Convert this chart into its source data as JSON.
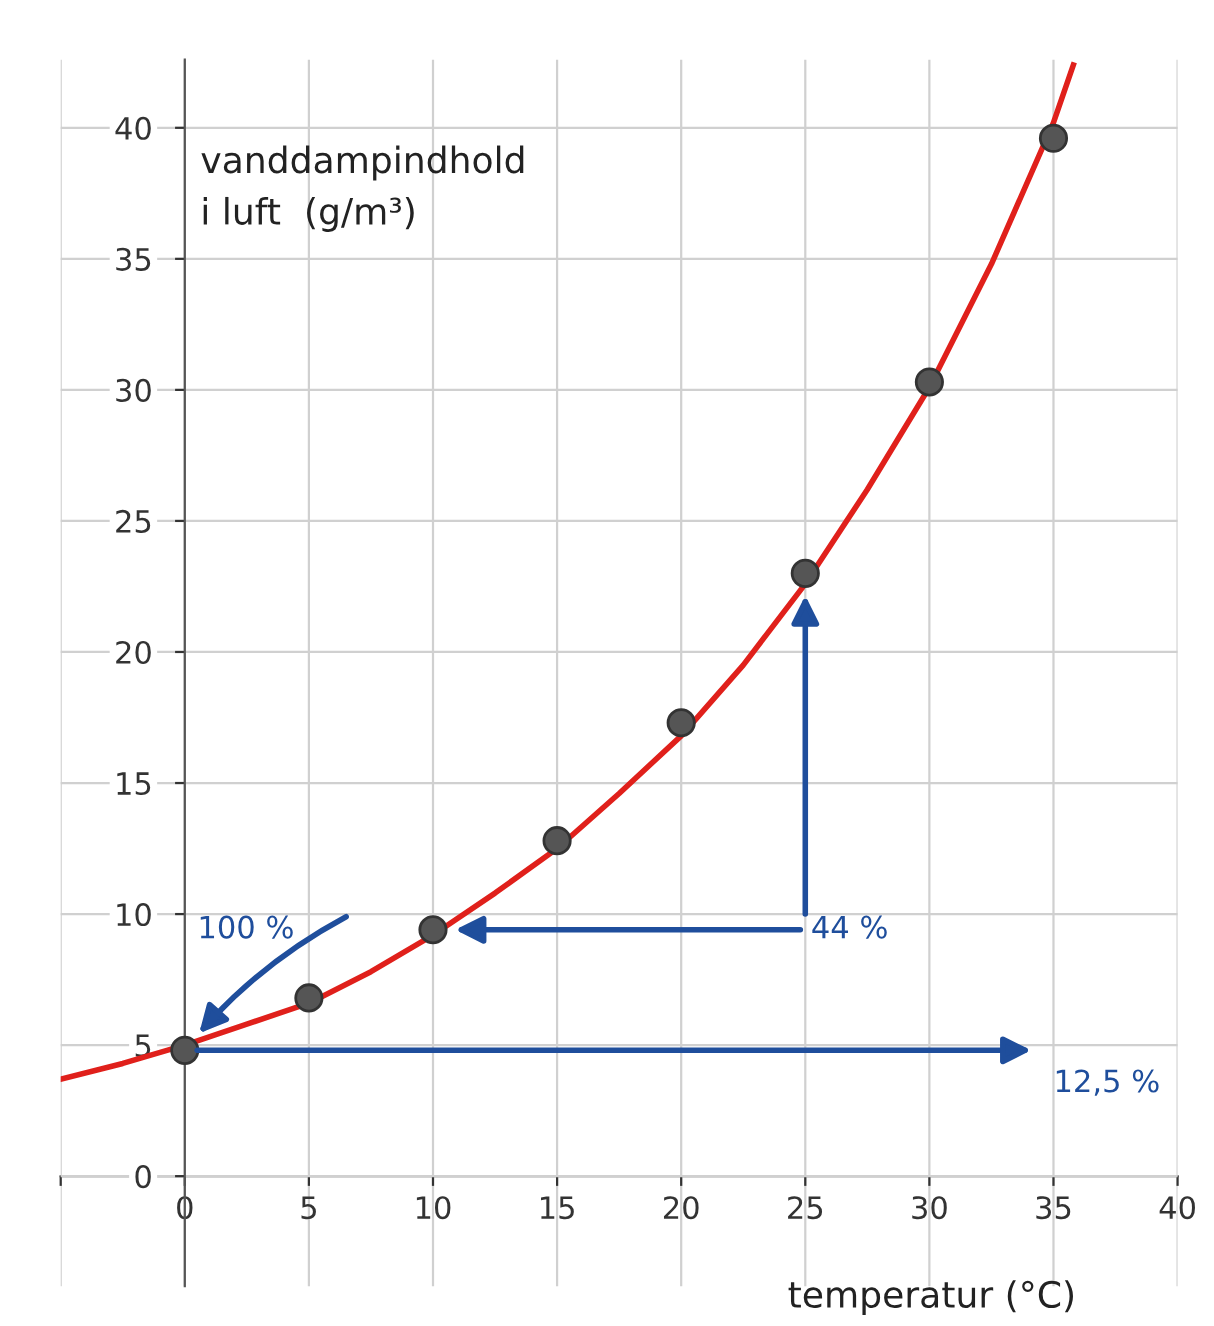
{
  "chart_data": {
    "type": "scatter",
    "xlabel": "temperatur (°C)",
    "ylabel": "vanddampindhold\ni luft  (g/m³)",
    "x": [
      0,
      5,
      10,
      15,
      20,
      25,
      30,
      35
    ],
    "series": [
      {
        "color": "#555555",
        "marker": "circle",
        "values": [
          4.8,
          6.8,
          9.4,
          12.8,
          17.3,
          23.0,
          30.3,
          39.6
        ]
      },
      {
        "type": "line",
        "marker": "none",
        "color": "#e0201b",
        "x": [
          -5,
          -2.5,
          0,
          2.5,
          5,
          7.5,
          10,
          12.5,
          15,
          17.5,
          20,
          22.5,
          25,
          27.5,
          30,
          32.5,
          35,
          35.8
        ],
        "values": [
          3.7,
          4.3,
          5.0,
          5.8,
          6.6,
          7.8,
          9.2,
          10.8,
          12.5,
          14.6,
          16.8,
          19.5,
          22.6,
          26.2,
          30.1,
          34.8,
          40.2,
          42.4
        ]
      }
    ],
    "annotations": [
      "100 %",
      "44 %",
      "12,5 %"
    ],
    "xlim": [
      -5,
      40
    ],
    "ylim": [
      -4.2,
      42.6
    ],
    "xticks": [
      {
        "value": -5,
        "label": null
      },
      0,
      5,
      10,
      15,
      20,
      25,
      30,
      35,
      40
    ],
    "yticks": [
      0,
      5,
      10,
      15,
      20,
      25,
      30,
      35,
      40
    ],
    "grid": true,
    "line_style": "solid"
  }
}
